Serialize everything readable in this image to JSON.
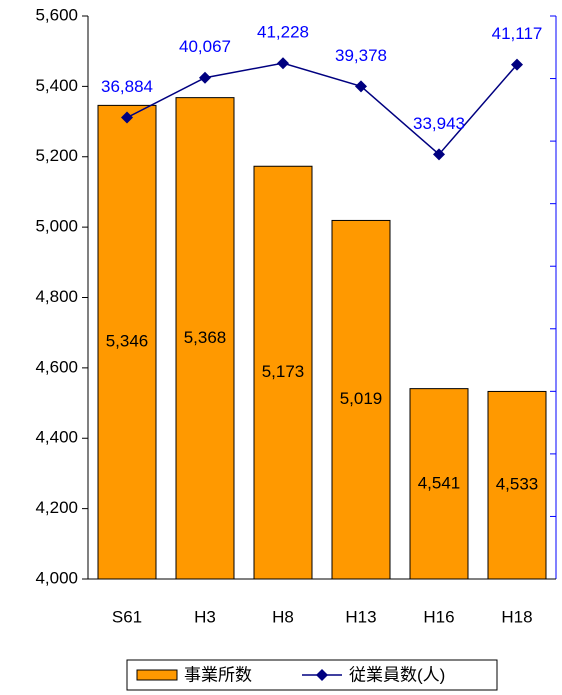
{
  "chart_data": {
    "type": "bar_line",
    "categories": [
      "S61",
      "H3",
      "H8",
      "H13",
      "H16",
      "H18"
    ],
    "series": [
      {
        "name": "事業所数",
        "type": "bar",
        "color": "#ff9900",
        "axis": "y",
        "values": [
          5346,
          5368,
          5173,
          5019,
          4541,
          4533
        ],
        "value_labels": [
          "5,346",
          "5,368",
          "5,173",
          "5,019",
          "4,541",
          "4,533"
        ]
      },
      {
        "name": "従業員数(人)",
        "type": "line",
        "color": "#000080",
        "label_color": "#0000ff",
        "axis": "y2",
        "values": [
          36884,
          40067,
          41228,
          39378,
          33943,
          41117
        ],
        "value_labels": [
          "36,884",
          "40,067",
          "41,228",
          "39,378",
          "33,943",
          "41,117"
        ]
      }
    ],
    "ylim": [
      4000,
      5600
    ],
    "yticks": [
      {
        "value": 4000,
        "label": "4,000"
      },
      {
        "value": 4200,
        "label": "4,200"
      },
      {
        "value": 4400,
        "label": "4,400"
      },
      {
        "value": 4600,
        "label": "4,600"
      },
      {
        "value": 4800,
        "label": "4,800"
      },
      {
        "value": 5000,
        "label": "5,000"
      },
      {
        "value": 5200,
        "label": "5,200"
      },
      {
        "value": 5400,
        "label": "5,400"
      },
      {
        "value": 5600,
        "label": "5,600"
      }
    ],
    "y2lim": [
      0,
      45000
    ],
    "y2ticks": [
      0,
      5000,
      10000,
      15000,
      20000,
      25000,
      30000,
      35000,
      40000,
      45000
    ],
    "y2_color": "#0000ff",
    "legend": "bottom"
  }
}
